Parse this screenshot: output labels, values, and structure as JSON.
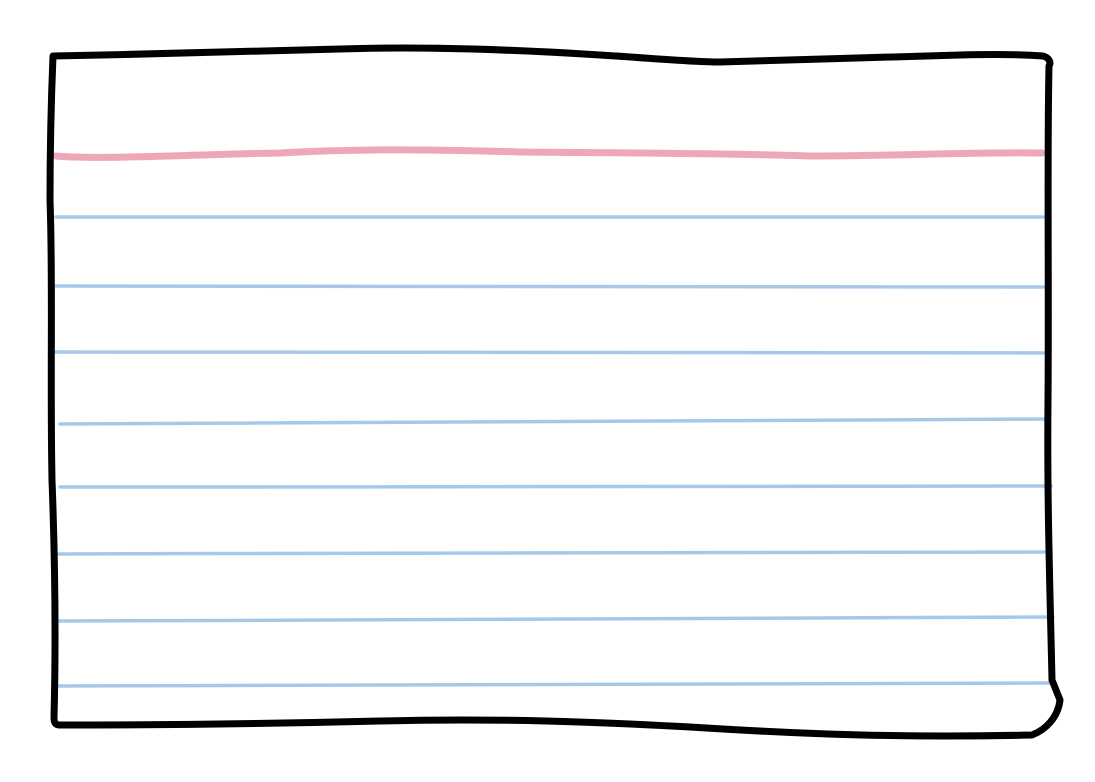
{
  "card": {
    "background_color": "#ffffff",
    "outline_color": "#000000",
    "header_rule_color": "#eda7b8",
    "ruled_line_color": "#a6c9ea",
    "ruled_line_count": 8
  }
}
